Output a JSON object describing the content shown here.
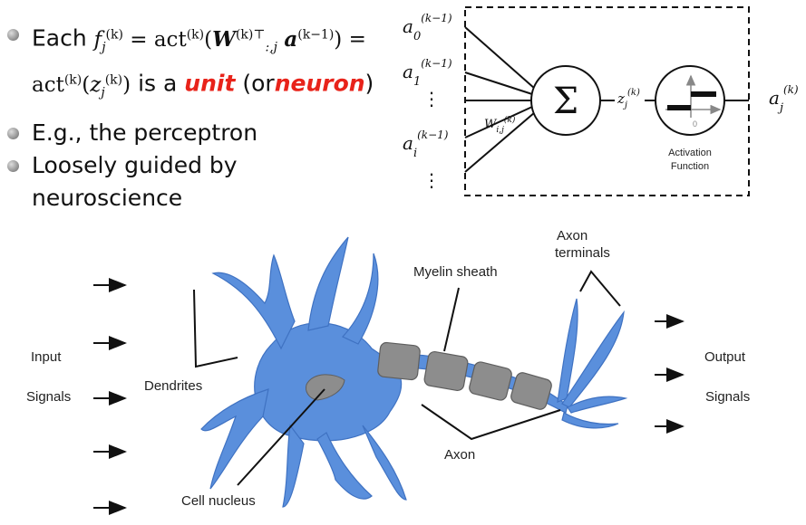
{
  "bullets": {
    "item1_word": "Each",
    "item1_eq_tail": "=",
    "item1_is": "is a",
    "item1_unit": "unit",
    "item1_or": "(or",
    "item1_neuron": "neuron",
    "item1_close": ")",
    "item2": "E.g., the perceptron",
    "item3": "Loosely guided by neuroscience"
  },
  "perceptron": {
    "sum_symbol": "Σ",
    "activation_label_line1": "Activation",
    "activation_label_line2": "Function",
    "zero_tick": "0",
    "dots": "⋮"
  },
  "neuron": {
    "input_line1": "Input",
    "input_line2": "Signals",
    "output_line1": "Output",
    "output_line2": "Signals",
    "dendrites": "Dendrites",
    "myelin": "Myelin sheath",
    "axon_terminals_line1": "Axon",
    "axon_terminals_line2": "terminals",
    "axon": "Axon",
    "nucleus": "Cell nucleus"
  },
  "colors": {
    "neuron_blue": "#5a8fdc",
    "myelin_gray": "#8d8d8d",
    "highlight_red": "#e8231a"
  }
}
